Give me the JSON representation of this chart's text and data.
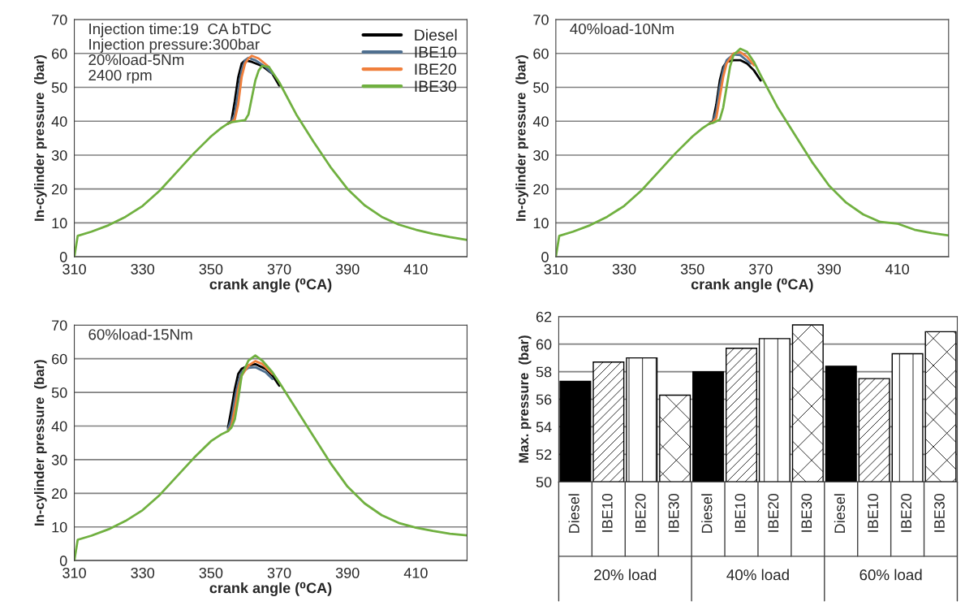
{
  "chart_data": [
    {
      "type": "line",
      "xlabel": "crank angle (⁰CA)",
      "ylabel": "In-cylinder pressure  (bar)",
      "xlim": [
        310,
        425
      ],
      "ylim": [
        0,
        70
      ],
      "xticks": [
        310,
        330,
        350,
        370,
        390,
        410
      ],
      "yticks": [
        0,
        10,
        20,
        30,
        40,
        50,
        60,
        70
      ],
      "grid": "y",
      "legend": "top right",
      "annotations": [
        "Injection time:19  CA bTDC",
        "Injection pressure:300bar",
        "20%load-5Nm",
        "2400 rpm"
      ],
      "series": [
        {
          "name": "Diesel",
          "color": "#000000",
          "x": [
            355,
            356,
            357,
            358,
            359,
            360,
            362,
            365,
            368,
            370
          ],
          "values": [
            39.3,
            40,
            46,
            53,
            57,
            58,
            57.5,
            56.3,
            54,
            50.5
          ]
        },
        {
          "name": "IBE10",
          "color": "#4f6f8f",
          "x": [
            355,
            356,
            357,
            358,
            359,
            360,
            361,
            363,
            366,
            368
          ],
          "values": [
            39.3,
            39.8,
            42,
            49,
            55,
            58,
            58.7,
            58,
            56,
            54
          ]
        },
        {
          "name": "IBE20",
          "color": "#f07f3c",
          "x": [
            355,
            356,
            357,
            358,
            359,
            360,
            361,
            362,
            364,
            367
          ],
          "values": [
            39.3,
            39.7,
            40.5,
            45,
            53,
            57,
            58.5,
            59.3,
            58.5,
            56
          ]
        },
        {
          "name": "IBE30",
          "color": "#70b040",
          "x": [
            310,
            311,
            315,
            320,
            325,
            330,
            335,
            340,
            345,
            350,
            353,
            355,
            356,
            358,
            360,
            361,
            362,
            363,
            364,
            365,
            367,
            370,
            375,
            380,
            385,
            390,
            395,
            400,
            405,
            410,
            415,
            420,
            425
          ],
          "values": [
            0,
            6.2,
            7.4,
            9.3,
            11.8,
            15,
            19.5,
            25,
            30.5,
            35.5,
            38,
            39.3,
            39.7,
            40,
            40.3,
            42,
            47,
            52,
            55,
            56.3,
            56,
            51.5,
            42,
            34,
            26.5,
            20,
            15.2,
            11.8,
            9.5,
            8,
            6.8,
            5.8,
            5
          ]
        }
      ]
    },
    {
      "type": "line",
      "xlabel": "crank angle (⁰CA)",
      "ylabel": "In-cylinder pressure  (bar)",
      "xlim": [
        310,
        425
      ],
      "ylim": [
        0,
        70
      ],
      "xticks": [
        310,
        330,
        350,
        370,
        390,
        410
      ],
      "yticks": [
        0,
        10,
        20,
        30,
        40,
        50,
        60,
        70
      ],
      "grid": "y",
      "annotations": [
        "40%load-10Nm"
      ],
      "series": [
        {
          "color": "#000000",
          "x": [
            355,
            356,
            357,
            358,
            359,
            360,
            362,
            364,
            366,
            368,
            370
          ],
          "values": [
            39.3,
            40,
            45,
            52,
            56,
            57.5,
            58,
            58,
            57,
            55,
            52
          ]
        },
        {
          "color": "#4f6f8f",
          "x": [
            355,
            356,
            357,
            358,
            359,
            360,
            362,
            364,
            367
          ],
          "values": [
            39.3,
            39.8,
            43,
            50,
            55,
            58,
            59.7,
            59.5,
            57
          ]
        },
        {
          "color": "#f07f3c",
          "x": [
            355,
            356,
            357,
            358,
            359,
            360,
            362,
            364,
            366,
            368
          ],
          "values": [
            39.3,
            39.7,
            41,
            47,
            53,
            57,
            60,
            60.4,
            59,
            56.5
          ]
        },
        {
          "color": "#70b040",
          "x": [
            310,
            311,
            315,
            320,
            325,
            330,
            335,
            340,
            345,
            350,
            353,
            355,
            356,
            358,
            359,
            360,
            361,
            362,
            364,
            366,
            368,
            370,
            375,
            380,
            385,
            390,
            395,
            400,
            405,
            410,
            415,
            420,
            425
          ],
          "values": [
            0,
            6.2,
            7.4,
            9.3,
            11.8,
            15,
            19.5,
            25,
            30.5,
            35.5,
            38,
            39.3,
            39.5,
            40.5,
            44,
            50,
            56,
            59.5,
            61.4,
            60.5,
            57.5,
            53.5,
            44,
            36,
            28,
            21,
            16,
            12.5,
            10.3,
            9.8,
            8,
            7,
            6.3
          ]
        }
      ]
    },
    {
      "type": "line",
      "xlabel": "crank angle (⁰CA)",
      "ylabel": "In-cylinder pressure  (bar)",
      "xlim": [
        310,
        425
      ],
      "ylim": [
        0,
        70
      ],
      "xticks": [
        310,
        330,
        350,
        370,
        390,
        410
      ],
      "yticks": [
        0,
        10,
        20,
        30,
        40,
        50,
        60,
        70
      ],
      "grid": "y",
      "annotations": [
        "60%load-15Nm"
      ],
      "series": [
        {
          "color": "#000000",
          "x": [
            355,
            356,
            357,
            358,
            359,
            361,
            363,
            366,
            368,
            370
          ],
          "values": [
            39.5,
            45,
            51,
            55.5,
            57,
            58,
            58.4,
            57,
            55,
            52
          ]
        },
        {
          "color": "#4f6f8f",
          "x": [
            355,
            356,
            357,
            358,
            359,
            361,
            363,
            366,
            368
          ],
          "values": [
            39,
            42,
            48,
            53,
            56,
            57.3,
            57.5,
            56,
            54
          ]
        },
        {
          "color": "#f07f3c",
          "x": [
            355,
            356,
            357,
            358,
            359,
            361,
            363,
            365,
            368
          ],
          "values": [
            38.5,
            40,
            45,
            51,
            55,
            58,
            59.3,
            58.5,
            55.5
          ]
        },
        {
          "color": "#70b040",
          "x": [
            310,
            311,
            315,
            320,
            325,
            330,
            335,
            340,
            345,
            350,
            353,
            355,
            356,
            357,
            358,
            359,
            361,
            363,
            365,
            368,
            370,
            375,
            380,
            385,
            390,
            395,
            400,
            405,
            410,
            415,
            420,
            425
          ],
          "values": [
            0,
            6.2,
            7.4,
            9.3,
            11.8,
            15,
            19.5,
            25,
            30.5,
            35.5,
            37.5,
            38.5,
            39.5,
            42,
            48,
            55,
            59.5,
            61,
            59.5,
            56,
            53,
            45,
            37,
            29,
            22,
            17,
            13.5,
            11.2,
            9.8,
            8.8,
            8,
            7.5
          ]
        }
      ]
    },
    {
      "type": "bar",
      "ylabel": "Max. pressure  (bar)",
      "ylim": [
        50,
        62
      ],
      "yticks": [
        50,
        52,
        54,
        56,
        58,
        60,
        62
      ],
      "grid": "y",
      "categories": [
        "Diesel",
        "IBE10",
        "IBE20",
        "IBE30",
        "Diesel",
        "IBE10",
        "IBE20",
        "IBE30",
        "Diesel",
        "IBE10",
        "IBE20",
        "IBE30"
      ],
      "values": [
        57.3,
        58.7,
        59.0,
        56.3,
        58.0,
        59.7,
        60.4,
        61.4,
        58.4,
        57.5,
        59.3,
        60.9
      ],
      "colors": [
        "#000000",
        "#ffffff",
        "#ffffff",
        "#ffffff",
        "#000000",
        "#ffffff",
        "#ffffff",
        "#ffffff",
        "#000000",
        "#ffffff",
        "#ffffff",
        "#ffffff"
      ],
      "annotations": [
        "20% load",
        "40% load",
        "60% load"
      ]
    }
  ]
}
